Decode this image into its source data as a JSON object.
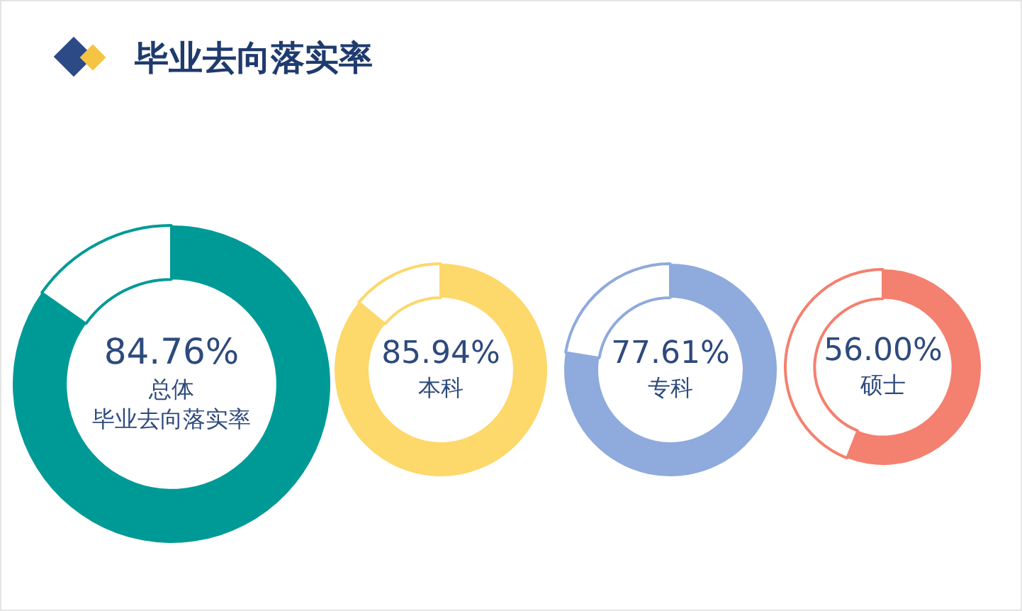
{
  "chart_data": [
    {
      "type": "other",
      "title": "毕业去向落实率"
    },
    {
      "type": "donut",
      "title": "总体",
      "subtitle": "毕业去向落实率",
      "categories": [
        null,
        null
      ],
      "values": [
        84.76,
        15.24
      ],
      "colors": [
        "#009a96",
        "#ffffff"
      ],
      "value_labels": [
        "84.76%",
        null
      ]
    },
    {
      "type": "donut",
      "title": "本科",
      "categories": [
        null,
        null
      ],
      "values": [
        85.94,
        14.06
      ],
      "colors": [
        "#fdd86a",
        "#ffffff"
      ],
      "value_labels": [
        "85.94%",
        null
      ]
    },
    {
      "type": "donut",
      "title": "专科",
      "categories": [
        null,
        null
      ],
      "values": [
        77.61,
        22.39
      ],
      "colors": [
        "#8faadc",
        "#ffffff"
      ],
      "value_labels": [
        "77.61%",
        null
      ]
    },
    {
      "type": "donut",
      "title": "硕士",
      "categories": [
        null,
        null
      ],
      "values": [
        56.0,
        44.0
      ],
      "colors": [
        "#f4806f",
        "#ffffff"
      ],
      "value_labels": [
        "56.00%",
        null
      ]
    }
  ]
}
